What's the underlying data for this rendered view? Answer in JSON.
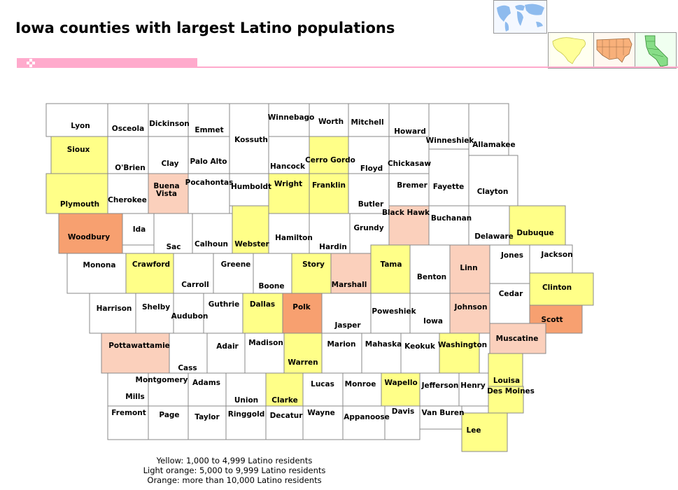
{
  "title": "Iowa counties with largest Latino populations",
  "colors": {
    "white": "#ffffff",
    "yellow": "#ffff88",
    "light_orange": "#fbd0bc",
    "orange": "#f7a070",
    "border": "#888888",
    "pink_accent": "#ffaacc"
  },
  "thumbnails": [
    {
      "name": "world-map-thumbnail",
      "icon": "world-map-icon"
    },
    {
      "name": "north-america-map-thumbnail",
      "icon": "north-america-icon"
    },
    {
      "name": "usa-map-thumbnail",
      "icon": "usa-map-icon"
    },
    {
      "name": "california-map-thumbnail",
      "icon": "california-map-icon"
    }
  ],
  "counties": [
    {
      "name": "Lyon",
      "category": "white"
    },
    {
      "name": "Osceola",
      "category": "white"
    },
    {
      "name": "Dickinson",
      "category": "white"
    },
    {
      "name": "Emmet",
      "category": "white"
    },
    {
      "name": "Kossuth",
      "category": "white"
    },
    {
      "name": "Winnebago",
      "category": "white"
    },
    {
      "name": "Worth",
      "category": "white"
    },
    {
      "name": "Mitchell",
      "category": "white"
    },
    {
      "name": "Howard",
      "category": "white"
    },
    {
      "name": "Winneshiek",
      "category": "white"
    },
    {
      "name": "Allamakee",
      "category": "white"
    },
    {
      "name": "Sioux",
      "category": "yellow"
    },
    {
      "name": "O'Brien",
      "category": "white"
    },
    {
      "name": "Clay",
      "category": "white"
    },
    {
      "name": "Palo Alto",
      "category": "white"
    },
    {
      "name": "Hancock",
      "category": "white"
    },
    {
      "name": "Cerro Gordo",
      "category": "yellow"
    },
    {
      "name": "Floyd",
      "category": "white"
    },
    {
      "name": "Chickasaw",
      "category": "white"
    },
    {
      "name": "Fayette",
      "category": "white"
    },
    {
      "name": "Clayton",
      "category": "white"
    },
    {
      "name": "Plymouth",
      "category": "yellow"
    },
    {
      "name": "Cherokee",
      "category": "white"
    },
    {
      "name": "Buena Vista",
      "category": "light_orange"
    },
    {
      "name": "Pocahontas",
      "category": "white"
    },
    {
      "name": "Humboldt",
      "category": "white"
    },
    {
      "name": "Wright",
      "category": "yellow"
    },
    {
      "name": "Franklin",
      "category": "yellow"
    },
    {
      "name": "Butler",
      "category": "white"
    },
    {
      "name": "Bremer",
      "category": "white"
    },
    {
      "name": "Black Hawk",
      "category": "light_orange"
    },
    {
      "name": "Buchanan",
      "category": "white"
    },
    {
      "name": "Delaware",
      "category": "white"
    },
    {
      "name": "Dubuque",
      "category": "yellow"
    },
    {
      "name": "Woodbury",
      "category": "orange"
    },
    {
      "name": "Ida",
      "category": "white"
    },
    {
      "name": "Sac",
      "category": "white"
    },
    {
      "name": "Calhoun",
      "category": "white"
    },
    {
      "name": "Webster",
      "category": "yellow"
    },
    {
      "name": "Hamilton",
      "category": "white"
    },
    {
      "name": "Hardin",
      "category": "white"
    },
    {
      "name": "Grundy",
      "category": "white"
    },
    {
      "name": "Tama",
      "category": "yellow"
    },
    {
      "name": "Benton",
      "category": "white"
    },
    {
      "name": "Linn",
      "category": "light_orange"
    },
    {
      "name": "Jones",
      "category": "white"
    },
    {
      "name": "Jackson",
      "category": "white"
    },
    {
      "name": "Monona",
      "category": "white"
    },
    {
      "name": "Crawford",
      "category": "yellow"
    },
    {
      "name": "Carroll",
      "category": "white"
    },
    {
      "name": "Greene",
      "category": "white"
    },
    {
      "name": "Boone",
      "category": "white"
    },
    {
      "name": "Story",
      "category": "yellow"
    },
    {
      "name": "Marshall",
      "category": "light_orange"
    },
    {
      "name": "Cedar",
      "category": "white"
    },
    {
      "name": "Clinton",
      "category": "yellow"
    },
    {
      "name": "Harrison",
      "category": "white"
    },
    {
      "name": "Shelby",
      "category": "white"
    },
    {
      "name": "Audubon",
      "category": "white"
    },
    {
      "name": "Guthrie",
      "category": "white"
    },
    {
      "name": "Dallas",
      "category": "yellow"
    },
    {
      "name": "Polk",
      "category": "orange"
    },
    {
      "name": "Jasper",
      "category": "white"
    },
    {
      "name": "Poweshiek",
      "category": "white"
    },
    {
      "name": "Iowa",
      "category": "white"
    },
    {
      "name": "Johnson",
      "category": "light_orange"
    },
    {
      "name": "Scott",
      "category": "orange"
    },
    {
      "name": "Pottawattamie",
      "category": "light_orange"
    },
    {
      "name": "Cass",
      "category": "white"
    },
    {
      "name": "Adair",
      "category": "white"
    },
    {
      "name": "Madison",
      "category": "white"
    },
    {
      "name": "Warren",
      "category": "yellow"
    },
    {
      "name": "Marion",
      "category": "white"
    },
    {
      "name": "Mahaska",
      "category": "white"
    },
    {
      "name": "Keokuk",
      "category": "white"
    },
    {
      "name": "Washington",
      "category": "yellow"
    },
    {
      "name": "Muscatine",
      "category": "light_orange"
    },
    {
      "name": "Mills",
      "category": "white"
    },
    {
      "name": "Montgomery",
      "category": "white"
    },
    {
      "name": "Adams",
      "category": "white"
    },
    {
      "name": "Union",
      "category": "white"
    },
    {
      "name": "Clarke",
      "category": "yellow"
    },
    {
      "name": "Lucas",
      "category": "white"
    },
    {
      "name": "Monroe",
      "category": "white"
    },
    {
      "name": "Wapello",
      "category": "yellow"
    },
    {
      "name": "Jefferson",
      "category": "white"
    },
    {
      "name": "Henry",
      "category": "white"
    },
    {
      "name": "Louisa",
      "category": "yellow"
    },
    {
      "name": "Des Moines",
      "category": "yellow"
    },
    {
      "name": "Fremont",
      "category": "white"
    },
    {
      "name": "Page",
      "category": "white"
    },
    {
      "name": "Taylor",
      "category": "white"
    },
    {
      "name": "Ringgold",
      "category": "white"
    },
    {
      "name": "Decatur",
      "category": "white"
    },
    {
      "name": "Wayne",
      "category": "white"
    },
    {
      "name": "Appanoose",
      "category": "white"
    },
    {
      "name": "Davis",
      "category": "white"
    },
    {
      "name": "Van Buren",
      "category": "white"
    },
    {
      "name": "Lee",
      "category": "yellow"
    }
  ],
  "legend": {
    "yellow": "Yellow: 1,000 to 4,999 Latino residents",
    "light_orange": "Light orange: 5,000 to 9,999 Latino residents",
    "orange": "Orange: more than 10,000 Latino residents"
  }
}
